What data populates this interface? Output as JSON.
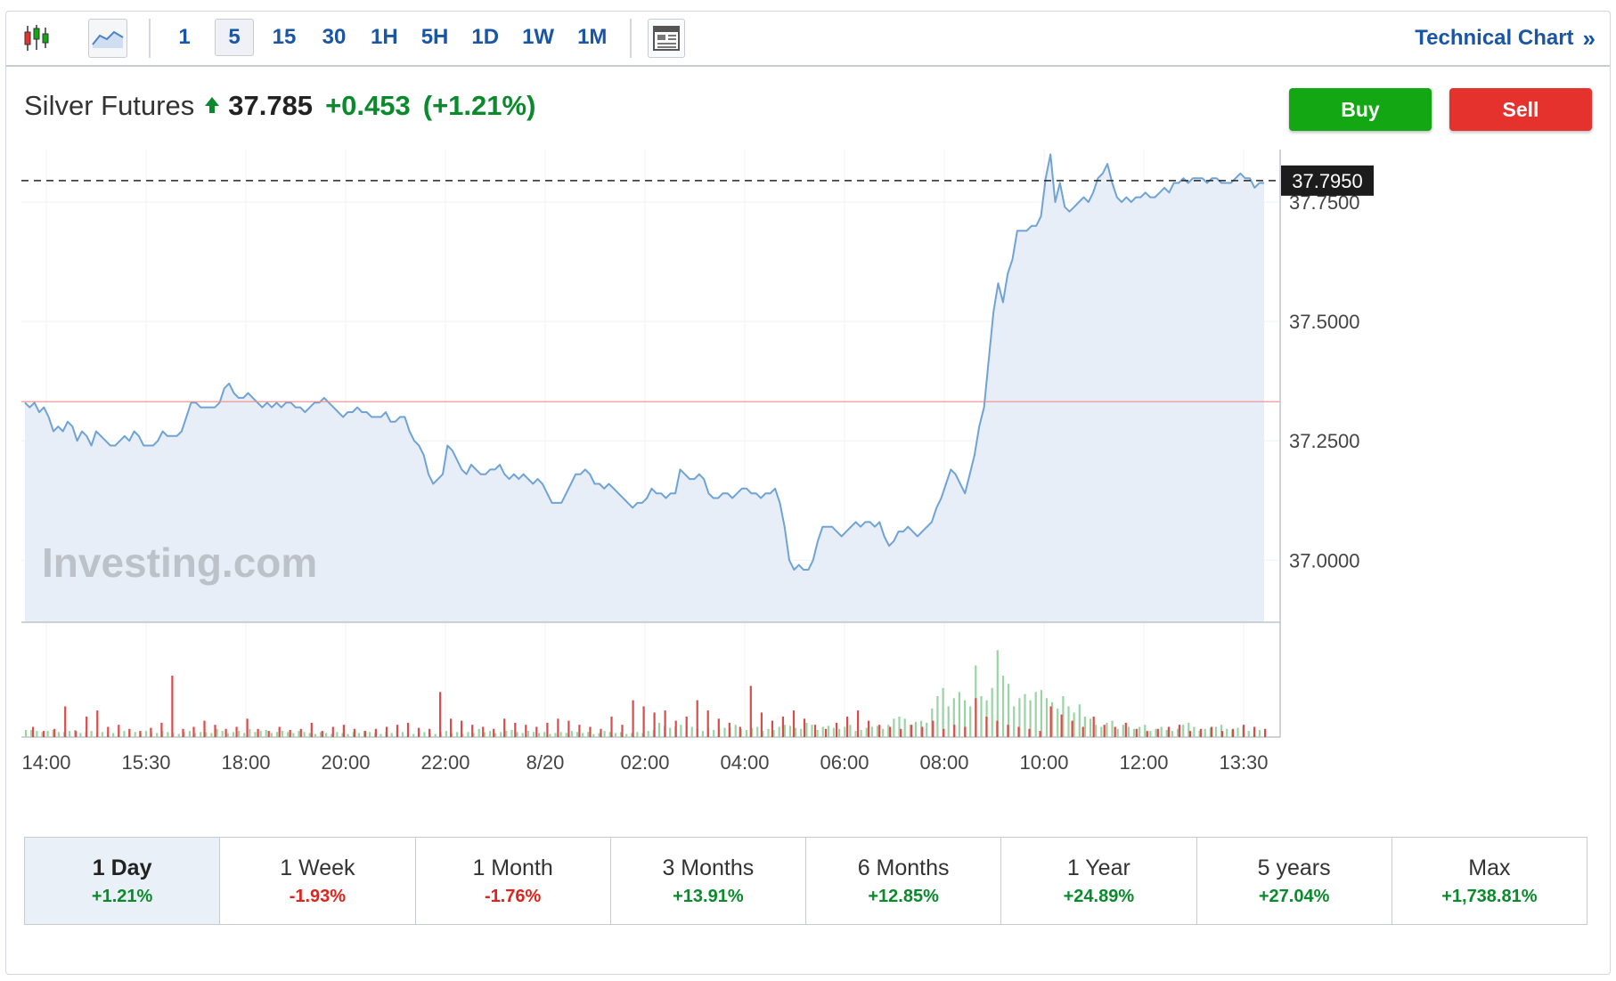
{
  "toolbar": {
    "chart_type_icons": [
      "candlestick-icon",
      "area-chart-icon"
    ],
    "intervals": [
      "1",
      "5",
      "15",
      "30",
      "1H",
      "5H",
      "1D",
      "1W",
      "1M"
    ],
    "active_interval": "5",
    "layout_icon": "layout-icon",
    "technical_chart_label": "Technical Chart",
    "technical_chart_chevron": "»"
  },
  "quote": {
    "name": "Silver Futures",
    "arrow": "🠝",
    "price": "37.785",
    "change": "+0.453",
    "change_pct": "(+1.21%)"
  },
  "actions": {
    "buy_label": "Buy",
    "sell_label": "Sell"
  },
  "colors": {
    "line": "#6fa3d6",
    "area_fill": "#e7eef7",
    "reference_line": "#f08a8a",
    "volume_up": "#9ad4a5",
    "volume_down": "#dd4a4a",
    "accent": "#1a56a3",
    "positive": "#0a8a2c",
    "negative": "#e0231c"
  },
  "watermark": "Investing.com",
  "chart_data": {
    "type": "area",
    "title": "",
    "xlabel": "",
    "ylabel": "",
    "ylim": [
      36.87,
      37.86
    ],
    "y_ticks": [
      "37.0000",
      "37.2500",
      "37.5000",
      "37.7500"
    ],
    "y_tick_values": [
      37.0,
      37.25,
      37.5,
      37.75
    ],
    "x_ticks": [
      "14:00",
      "15:30",
      "18:00",
      "20:00",
      "22:00",
      "8/20",
      "02:00",
      "04:00",
      "06:00",
      "08:00",
      "10:00",
      "12:00",
      "13:30"
    ],
    "current_value": 37.795,
    "current_label": "37.7950",
    "reference_value": 37.332,
    "grid": true,
    "series": [
      {
        "values": [
          37.33,
          37.32,
          37.33,
          37.31,
          37.32,
          37.3,
          37.27,
          37.28,
          37.27,
          37.29,
          37.28,
          37.25,
          37.27,
          37.26,
          37.24,
          37.27,
          37.26,
          37.25,
          37.24,
          37.24,
          37.25,
          37.26,
          37.25,
          37.27,
          37.26,
          37.24,
          37.24,
          37.24,
          37.25,
          37.27,
          37.26,
          37.26,
          37.26,
          37.27,
          37.3,
          37.33,
          37.33,
          37.32,
          37.32,
          37.32,
          37.32,
          37.33,
          37.36,
          37.37,
          37.35,
          37.34,
          37.34,
          37.35,
          37.34,
          37.33,
          37.32,
          37.33,
          37.32,
          37.33,
          37.32,
          37.33,
          37.33,
          37.32,
          37.32,
          37.31,
          37.32,
          37.33,
          37.33,
          37.34,
          37.33,
          37.32,
          37.31,
          37.3,
          37.31,
          37.31,
          37.32,
          37.31,
          37.31,
          37.3,
          37.3,
          37.3,
          37.31,
          37.29,
          37.29,
          37.3,
          37.3,
          37.27,
          37.25,
          37.24,
          37.22,
          37.18,
          37.16,
          37.17,
          37.18,
          37.24,
          37.23,
          37.21,
          37.19,
          37.18,
          37.2,
          37.19,
          37.18,
          37.18,
          37.19,
          37.19,
          37.2,
          37.18,
          37.17,
          37.18,
          37.17,
          37.18,
          37.17,
          37.16,
          37.17,
          37.16,
          37.14,
          37.12,
          37.12,
          37.12,
          37.14,
          37.16,
          37.18,
          37.18,
          37.19,
          37.18,
          37.16,
          37.16,
          37.15,
          37.16,
          37.15,
          37.14,
          37.13,
          37.12,
          37.11,
          37.12,
          37.12,
          37.13,
          37.15,
          37.14,
          37.14,
          37.13,
          37.14,
          37.14,
          37.19,
          37.18,
          37.17,
          37.17,
          37.18,
          37.17,
          37.14,
          37.13,
          37.13,
          37.14,
          37.14,
          37.13,
          37.14,
          37.15,
          37.15,
          37.14,
          37.14,
          37.13,
          37.14,
          37.14,
          37.15,
          37.12,
          37.07,
          37.0,
          36.98,
          36.99,
          36.98,
          36.98,
          37.0,
          37.04,
          37.07,
          37.07,
          37.07,
          37.06,
          37.05,
          37.06,
          37.07,
          37.08,
          37.07,
          37.08,
          37.08,
          37.07,
          37.08,
          37.05,
          37.03,
          37.04,
          37.06,
          37.06,
          37.07,
          37.06,
          37.05,
          37.06,
          37.07,
          37.08,
          37.11,
          37.13,
          37.16,
          37.19,
          37.18,
          37.16,
          37.14,
          37.18,
          37.22,
          37.28,
          37.32,
          37.42,
          37.52,
          37.58,
          37.54,
          37.6,
          37.63,
          37.69,
          37.69,
          37.69,
          37.7,
          37.7,
          37.72,
          37.8,
          37.85,
          37.75,
          37.79,
          37.74,
          37.73,
          37.74,
          37.75,
          37.76,
          37.75,
          37.77,
          37.8,
          37.81,
          37.83,
          37.79,
          37.76,
          37.75,
          37.76,
          37.75,
          37.76,
          37.76,
          37.77,
          37.76,
          37.76,
          37.77,
          37.78,
          37.77,
          37.79,
          37.79,
          37.8,
          37.79,
          37.8,
          37.8,
          37.8,
          37.79,
          37.8,
          37.8,
          37.79,
          37.79,
          37.79,
          37.8,
          37.81,
          37.8,
          37.8,
          37.78,
          37.79,
          37.79
        ]
      }
    ],
    "volume": {
      "up": [
        7,
        7,
        6,
        5,
        6,
        7,
        5,
        5,
        6,
        7,
        4,
        5,
        6,
        4,
        5,
        6,
        4,
        7,
        6,
        6,
        5,
        4,
        6,
        5,
        4,
        6,
        5,
        4,
        3,
        5,
        6,
        4,
        5,
        5,
        4,
        8,
        6,
        4,
        5,
        6,
        4,
        8,
        5,
        6,
        7,
        4,
        5,
        6,
        5,
        4,
        6,
        5,
        4,
        3,
        5,
        4,
        3,
        5,
        4,
        3,
        5,
        4,
        6,
        5,
        4,
        3,
        5,
        4,
        6,
        5,
        4,
        3,
        6,
        5,
        4,
        3,
        5,
        6,
        4,
        5,
        3,
        5,
        4,
        8,
        5,
        6,
        4,
        5,
        6,
        7,
        5,
        4,
        6,
        5,
        4,
        5,
        3,
        4,
        5,
        4,
        6,
        5,
        4,
        5,
        3,
        4,
        6,
        5,
        4,
        5,
        3,
        4,
        5,
        4,
        6,
        7,
        14,
        11,
        9,
        10,
        12,
        13,
        10,
        8,
        6,
        9,
        7,
        8,
        9,
        10,
        12,
        8,
        7,
        9,
        10,
        6,
        8,
        7,
        10,
        12,
        11,
        9,
        8,
        14,
        12,
        7,
        10,
        11,
        9,
        8,
        10,
        12,
        6,
        7,
        9,
        10,
        11,
        8,
        12,
        18,
        20,
        18,
        12,
        15,
        16,
        14,
        28,
        40,
        48,
        30,
        38,
        44,
        36,
        30,
        70,
        40,
        36,
        48,
        85,
        60,
        52,
        30,
        38,
        42,
        36,
        44,
        46,
        38,
        34,
        28,
        40,
        30,
        24,
        32,
        20,
        18,
        12,
        10,
        14,
        16,
        8,
        12,
        10,
        8,
        10,
        12,
        6,
        8,
        10,
        7,
        6,
        8,
        12,
        14,
        10,
        6,
        8,
        9,
        10,
        12,
        8,
        7,
        9,
        10,
        6,
        8,
        7,
        6
      ],
      "down": [
        10,
        6,
        8,
        30,
        6,
        20,
        26,
        10,
        12,
        8,
        6,
        9,
        14,
        60,
        8,
        10,
        16,
        12,
        8,
        10,
        18,
        8,
        6,
        10,
        7,
        8,
        14,
        6,
        10,
        12,
        8,
        6,
        8,
        10,
        12,
        14,
        9,
        8,
        44,
        18,
        16,
        12,
        10,
        8,
        18,
        14,
        12,
        10,
        14,
        18,
        16,
        12,
        10,
        8,
        20,
        12,
        36,
        30,
        24,
        26,
        16,
        20,
        36,
        26,
        18,
        14,
        10,
        50,
        24,
        16,
        20,
        26,
        18,
        12,
        8,
        14,
        20,
        26,
        16,
        12,
        10,
        8,
        12,
        10,
        16,
        8,
        12,
        10,
        38,
        20,
        16,
        12,
        10,
        8,
        6,
        30,
        22,
        16,
        10,
        20,
        12,
        10,
        14,
        8,
        6,
        8,
        10,
        12,
        6,
        8,
        10,
        6,
        8,
        12,
        10,
        8
      ]
    }
  },
  "periods": [
    {
      "label": "1 Day",
      "change": "+1.21%",
      "dir": "pos",
      "active": true
    },
    {
      "label": "1 Week",
      "change": "-1.93%",
      "dir": "neg",
      "active": false
    },
    {
      "label": "1 Month",
      "change": "-1.76%",
      "dir": "neg",
      "active": false
    },
    {
      "label": "3 Months",
      "change": "+13.91%",
      "dir": "pos",
      "active": false
    },
    {
      "label": "6 Months",
      "change": "+12.85%",
      "dir": "pos",
      "active": false
    },
    {
      "label": "1 Year",
      "change": "+24.89%",
      "dir": "pos",
      "active": false
    },
    {
      "label": "5 years",
      "change": "+27.04%",
      "dir": "pos",
      "active": false
    },
    {
      "label": "Max",
      "change": "+1,738.81%",
      "dir": "pos",
      "active": false
    }
  ]
}
